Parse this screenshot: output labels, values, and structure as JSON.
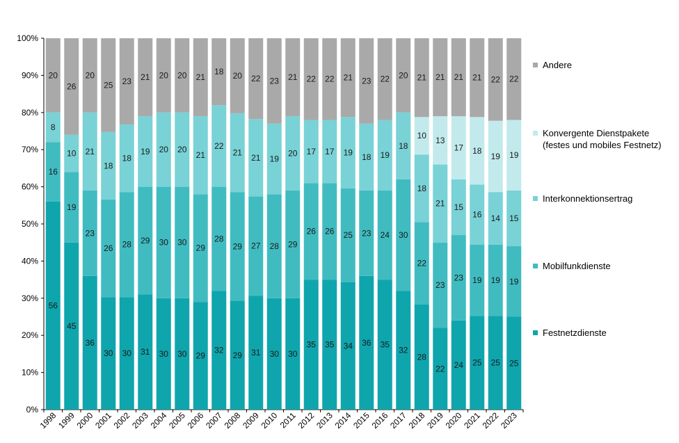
{
  "chart_data": {
    "type": "bar",
    "stacked": true,
    "percent": true,
    "categories": [
      "1998",
      "1999",
      "2000",
      "2001",
      "2002",
      "2003",
      "2004",
      "2005",
      "2006",
      "2007",
      "2008",
      "2009",
      "2010",
      "2011",
      "2012",
      "2013",
      "2014",
      "2015",
      "2016",
      "2017",
      "2018",
      "2019",
      "2020",
      "2021",
      "2022",
      "2023"
    ],
    "ylim": [
      0,
      100
    ],
    "yticks": [
      "0%",
      "10%",
      "20%",
      "30%",
      "40%",
      "50%",
      "60%",
      "70%",
      "80%",
      "90%",
      "100%"
    ],
    "legend_position": "right",
    "series": [
      {
        "name": "Festnetzdienste",
        "color": "#0fa5ad",
        "values": [
          56,
          45,
          36,
          30,
          30,
          31,
          30,
          30,
          29,
          32,
          29,
          31,
          30,
          30,
          35,
          35,
          34,
          36,
          35,
          32,
          28,
          22,
          24,
          25,
          25,
          25
        ]
      },
      {
        "name": "Mobilfunkdienste",
        "color": "#40bcc1",
        "values": [
          16,
          19,
          23,
          26,
          28,
          29,
          30,
          30,
          29,
          28,
          29,
          27,
          28,
          29,
          26,
          26,
          25,
          23,
          24,
          30,
          22,
          23,
          23,
          19,
          19,
          19
        ]
      },
      {
        "name": "Interkonnektionsertrag",
        "color": "#79d2d6",
        "values": [
          8,
          10,
          21,
          18,
          18,
          19,
          20,
          20,
          21,
          22,
          21,
          21,
          19,
          20,
          17,
          17,
          19,
          18,
          19,
          18,
          18,
          21,
          15,
          16,
          14,
          15
        ]
      },
      {
        "name": "Konvergente Dienstpakete (festes und mobiles Festnetz)",
        "color": "#c2eaec",
        "values": [
          null,
          null,
          null,
          null,
          null,
          null,
          null,
          null,
          null,
          null,
          null,
          null,
          null,
          null,
          null,
          null,
          null,
          null,
          null,
          null,
          10,
          13,
          17,
          18,
          19,
          19
        ]
      },
      {
        "name": "Andere",
        "color": "#a9a9a9",
        "values": [
          20,
          26,
          20,
          25,
          23,
          21,
          20,
          20,
          21,
          18,
          20,
          22,
          23,
          21,
          22,
          22,
          21,
          23,
          22,
          20,
          21,
          21,
          21,
          21,
          22,
          22
        ]
      }
    ]
  },
  "legend": [
    {
      "lines": [
        "Andere"
      ],
      "color": "#a9a9a9"
    },
    {
      "lines": [
        "Konvergente Dienstpakete",
        "(festes und mobiles Festnetz)"
      ],
      "color": "#c2eaec"
    },
    {
      "lines": [
        "Interkonnektionsertrag"
      ],
      "color": "#79d2d6"
    },
    {
      "lines": [
        "Mobilfunkdienste"
      ],
      "color": "#40bcc1"
    },
    {
      "lines": [
        "Festnetzdienste"
      ],
      "color": "#0fa5ad"
    }
  ]
}
